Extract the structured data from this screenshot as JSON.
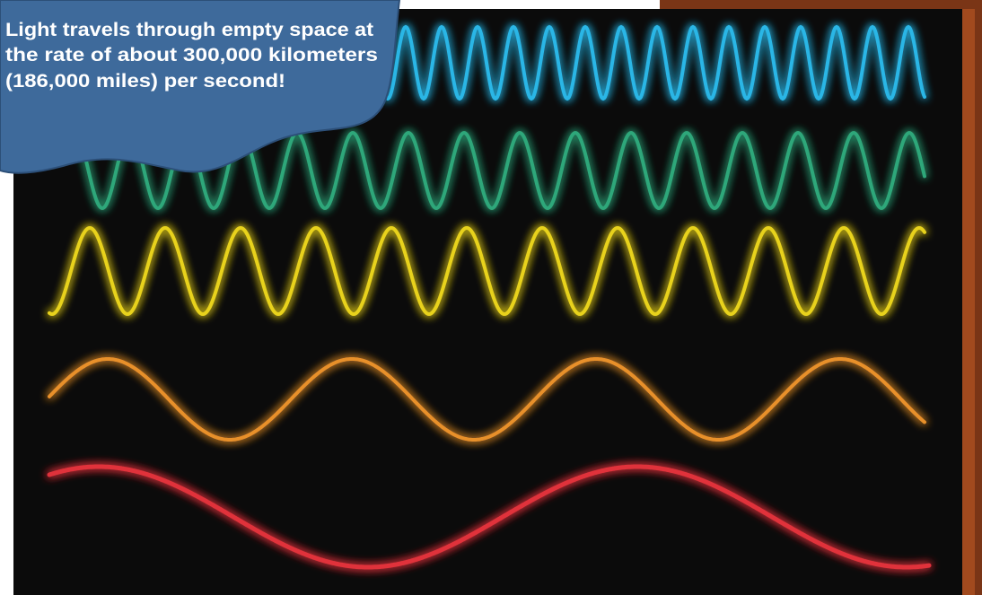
{
  "callout": {
    "lines": [
      "Light travels through empty space at",
      "the rate of about 300,000 kilometers",
      "(186,000 miles) per second!"
    ]
  }
}
